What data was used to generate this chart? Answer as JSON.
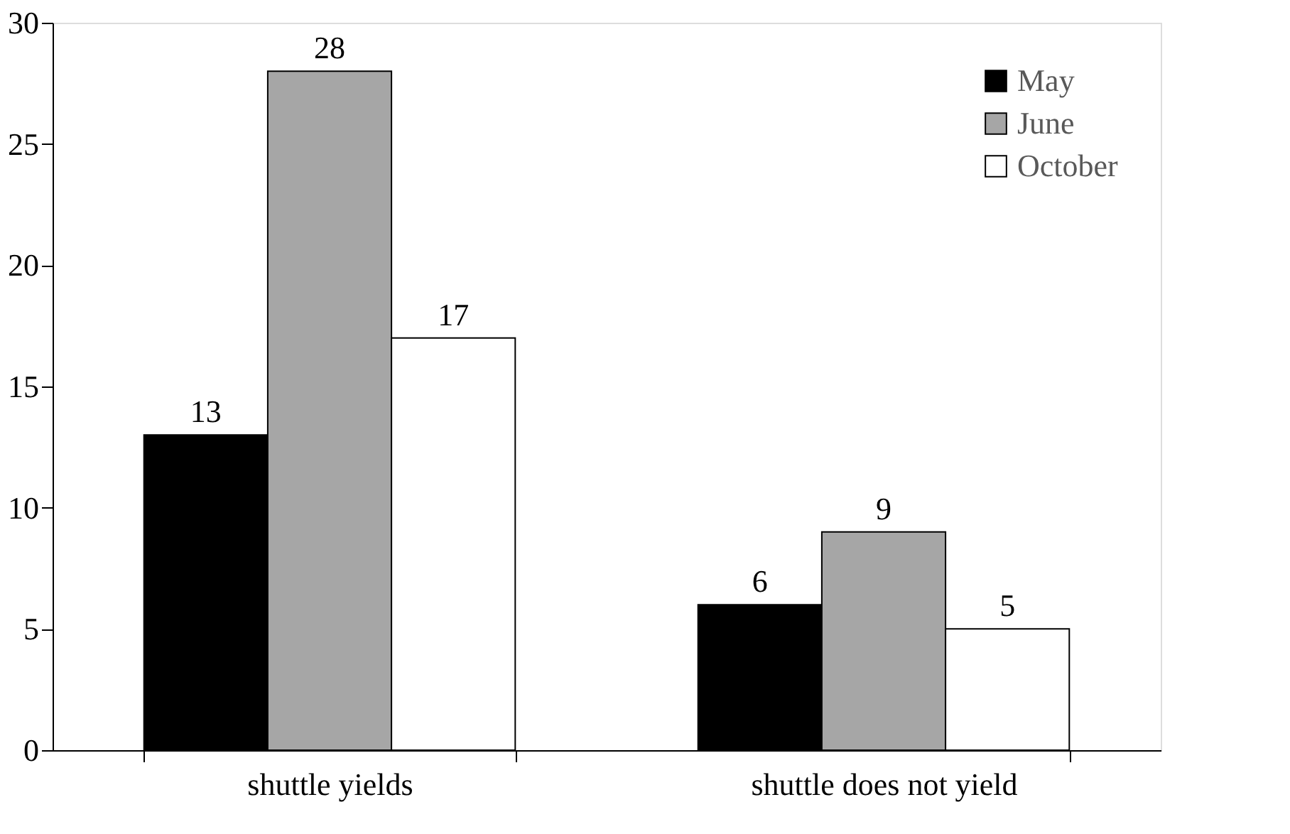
{
  "chart_data": {
    "type": "bar",
    "categories": [
      "shuttle yields",
      "shuttle does not yield"
    ],
    "series": [
      {
        "name": "May",
        "color": "#000000",
        "values": [
          13,
          6
        ]
      },
      {
        "name": "June",
        "color": "#a6a6a6",
        "values": [
          28,
          9
        ]
      },
      {
        "name": "October",
        "color": "#ffffff",
        "values": [
          17,
          5
        ]
      }
    ],
    "ylim": [
      0,
      30
    ],
    "yticks": [
      0,
      5,
      10,
      15,
      20,
      25,
      30
    ],
    "grid": false,
    "legend": "top right",
    "data_labels": true
  }
}
